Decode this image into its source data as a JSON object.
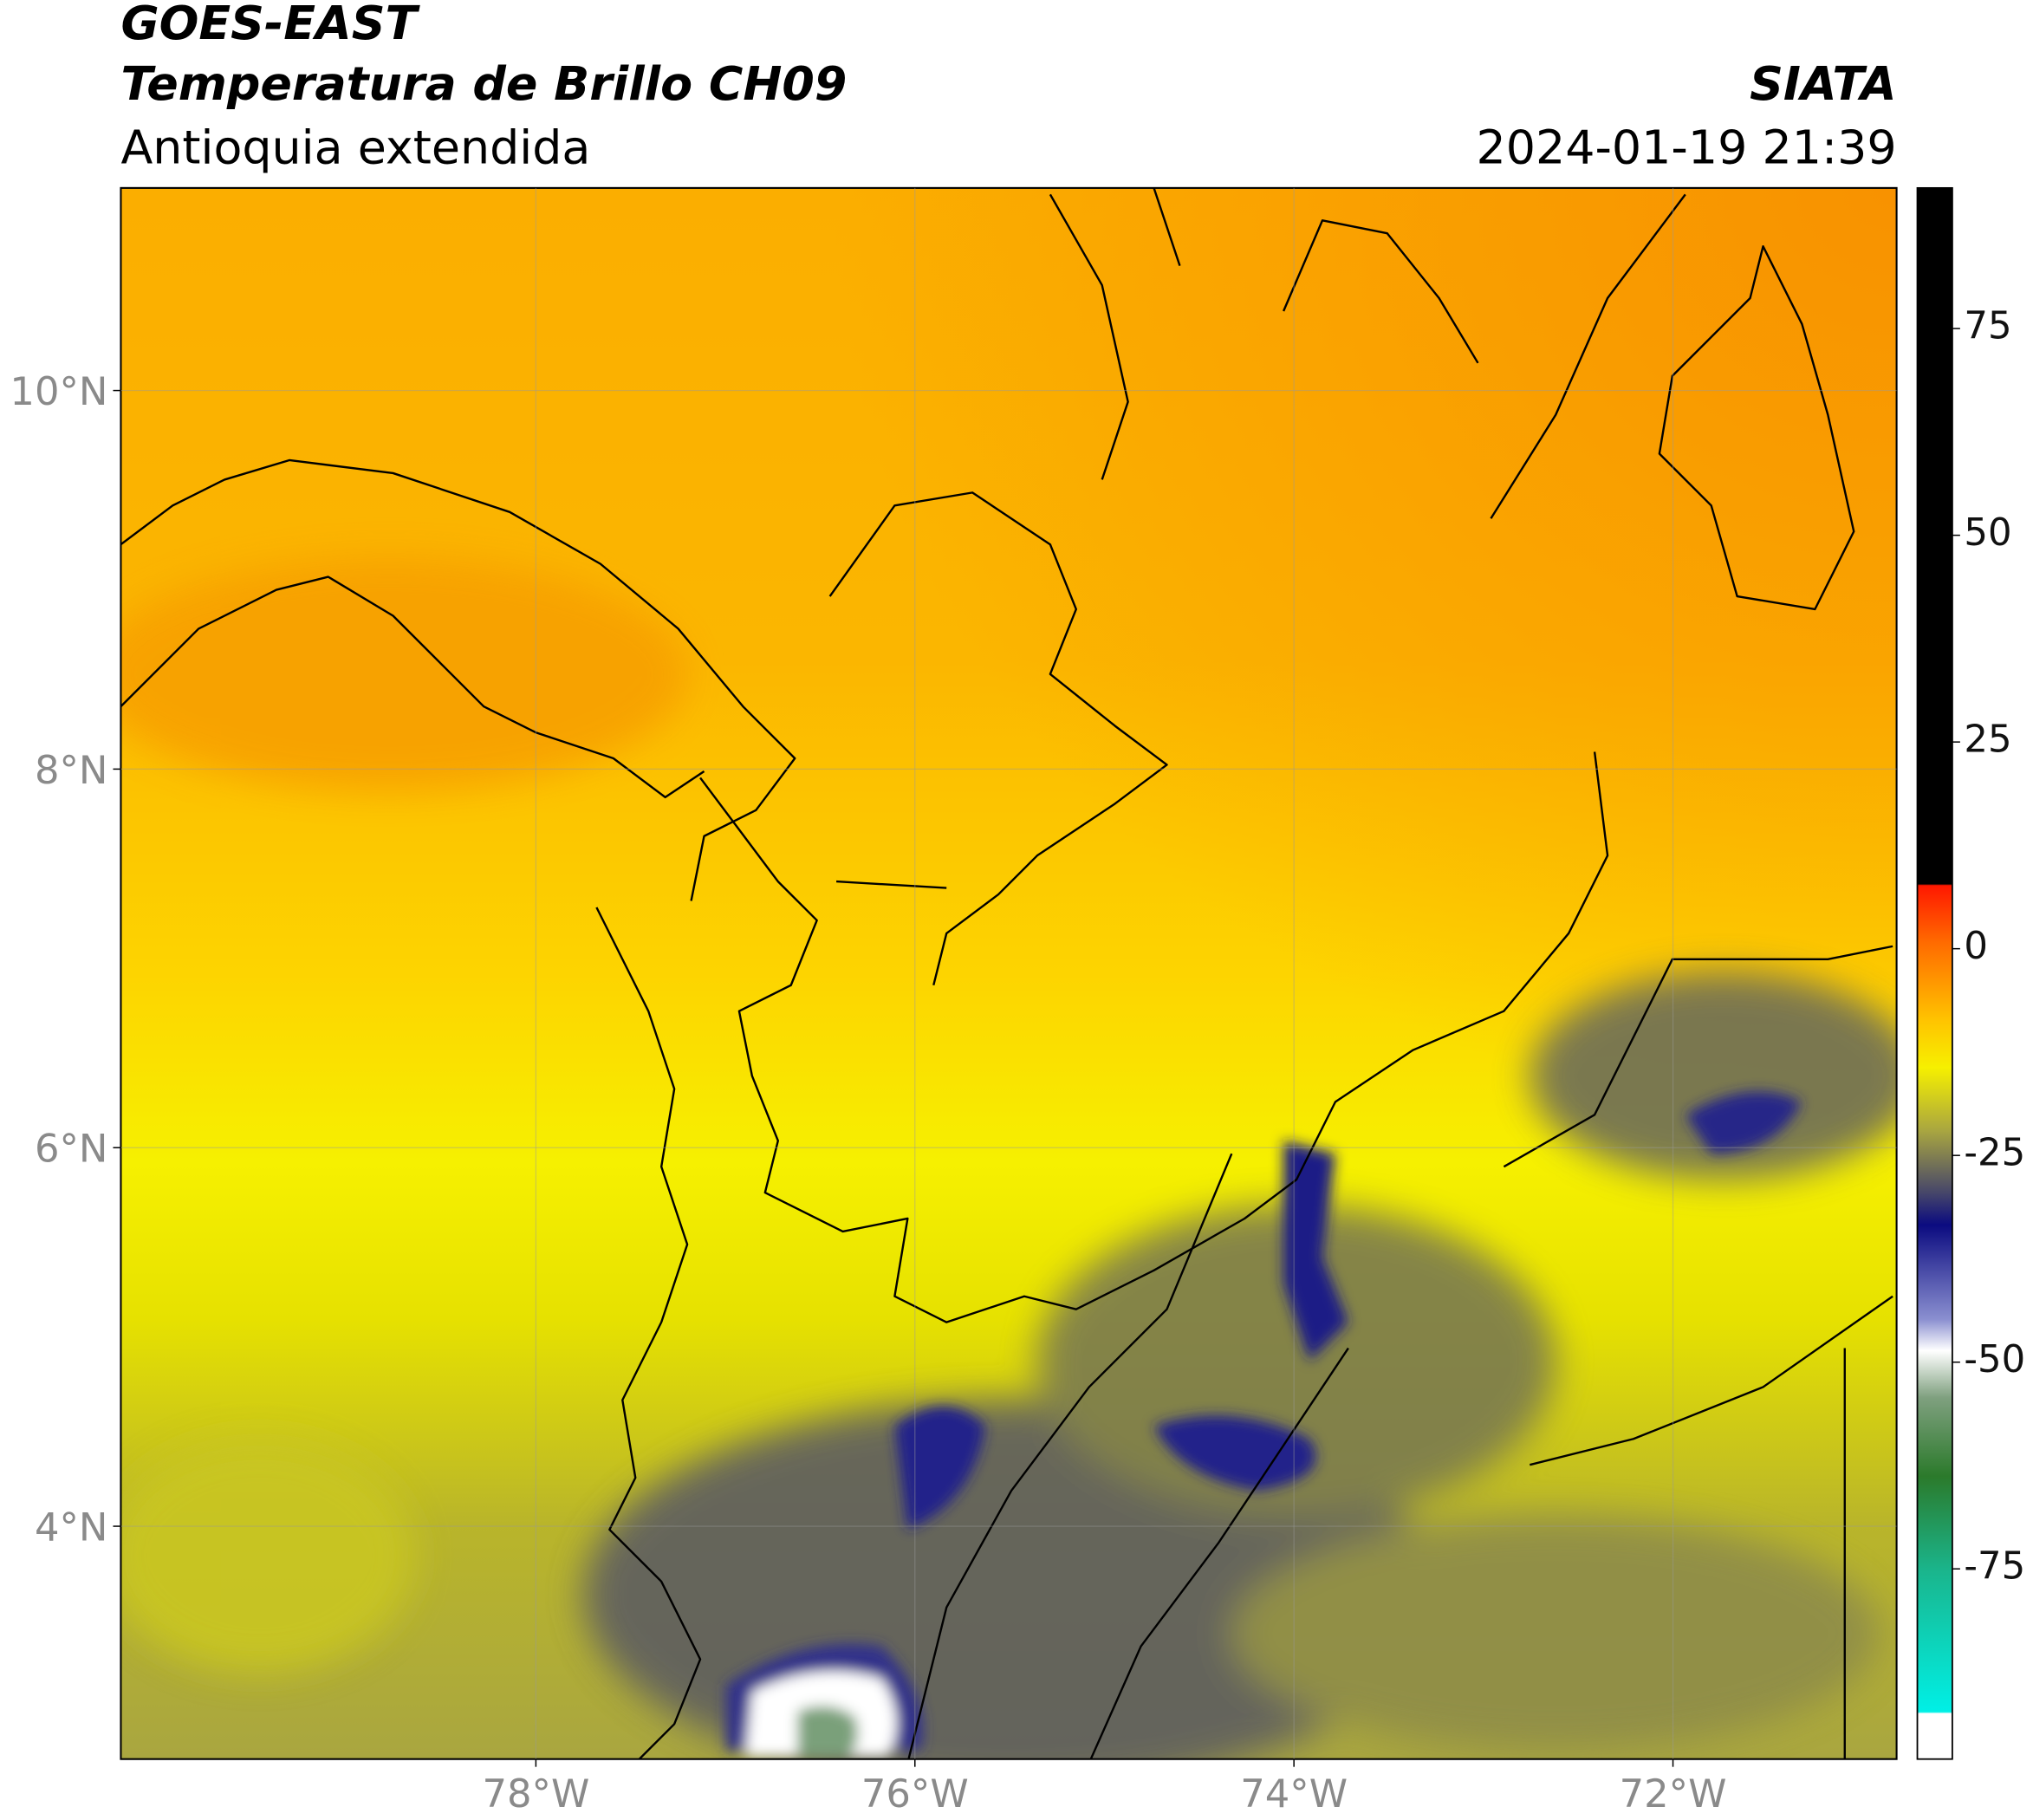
{
  "header": {
    "source": "GOES-EAST",
    "product": "Temperatura de Brillo CH09",
    "region": "Antioquia extendida",
    "agency": "SIATA",
    "datetime": "2024-01-19 21:39"
  },
  "map": {
    "xlim": [
      -80.19,
      -70.82
    ],
    "ylim": [
      2.77,
      11.07
    ],
    "xticks": [
      {
        "value": -78,
        "label": "78°W"
      },
      {
        "value": -76,
        "label": "76°W"
      },
      {
        "value": -74,
        "label": "74°W"
      },
      {
        "value": -72,
        "label": "72°W"
      }
    ],
    "yticks": [
      {
        "value": 4,
        "label": "4°N"
      },
      {
        "value": 6,
        "label": "6°N"
      },
      {
        "value": 8,
        "label": "8°N"
      },
      {
        "value": 10,
        "label": "10°N"
      }
    ],
    "grid": true
  },
  "colorbar": {
    "clim": [
      -98,
      92
    ],
    "ticks": [
      75,
      50,
      25,
      0,
      -25,
      -50,
      -75
    ]
  }
}
